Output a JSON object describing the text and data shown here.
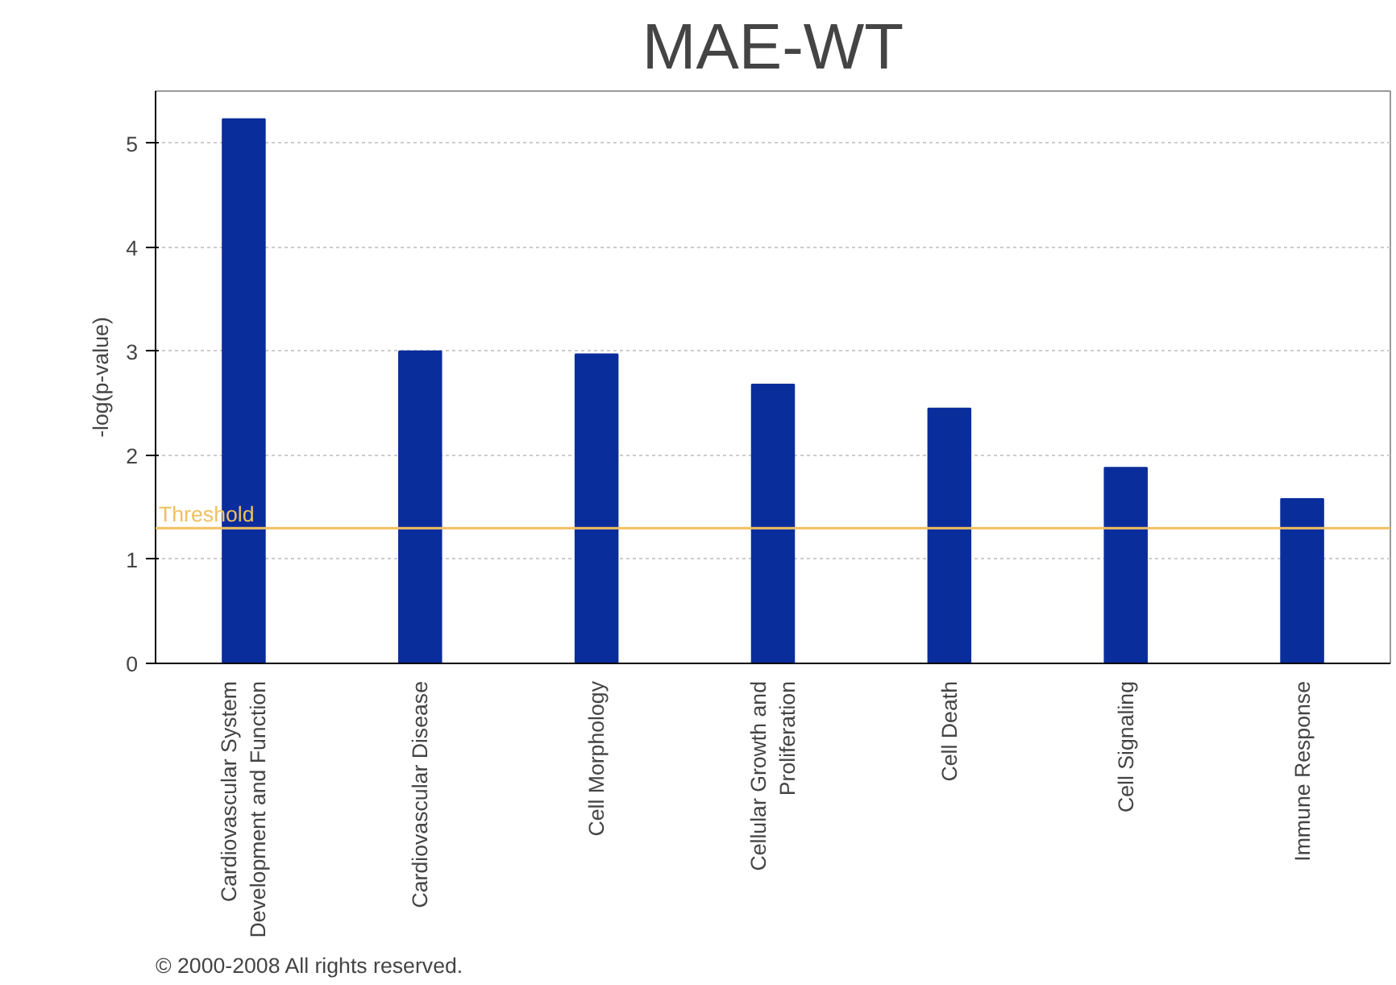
{
  "chart_data": {
    "type": "bar",
    "title": "MAE-WT",
    "ylabel": "-log(p-value)",
    "categories": [
      "Cardiovascular System\nDevelopment and Function",
      "Cardiovascular Disease",
      "Cell Morphology",
      "Cellular Growth and\nProliferation",
      "Cell Death",
      "Cell Signaling",
      "Immune Response"
    ],
    "values": [
      5.23,
      3.0,
      2.97,
      2.68,
      2.45,
      1.88,
      1.58
    ],
    "color": "#0a2d9c",
    "ylim": [
      0,
      5.5
    ],
    "yticks": [
      0,
      1,
      2,
      3,
      4,
      5
    ],
    "grid": "y",
    "ref_lines": [
      {
        "axis": "y",
        "value": 1.3,
        "label": "Threshold",
        "color": "#f0c060"
      }
    ],
    "annotations": [
      "© 2000-2008 All rights reserved."
    ]
  }
}
